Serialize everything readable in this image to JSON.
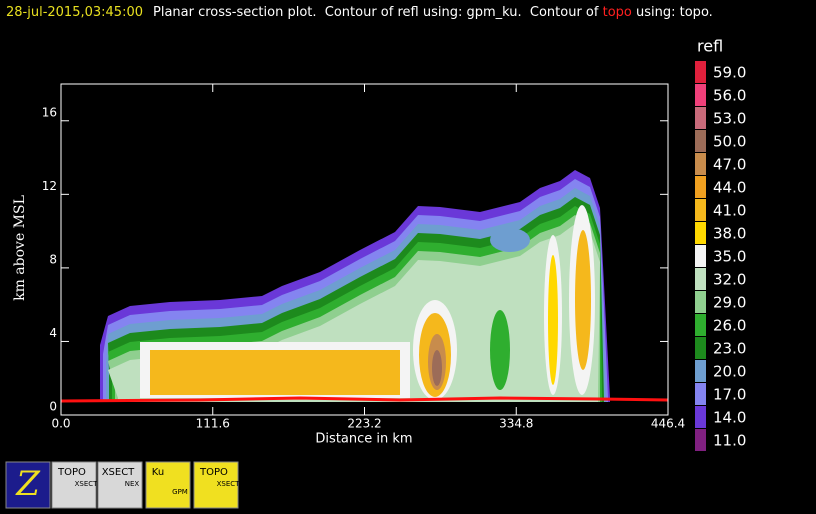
{
  "header": {
    "time": "28-jul-2015,03:45:00",
    "text1": "Planar cross-section plot.  Contour of refl using: gpm_ku.  Contour of ",
    "highlight": "topo",
    "text2": " using: topo."
  },
  "chart_data": {
    "type": "contour",
    "xlabel": "Distance in km",
    "ylabel": "km above MSL",
    "xlim": [
      0,
      446.4
    ],
    "ylim": [
      0,
      18
    ],
    "xticks": [
      {
        "value": 0,
        "label": "0.0"
      },
      111.6,
      223.2,
      334.8,
      446.4
    ],
    "yticks": [
      0,
      4,
      8,
      12,
      16
    ],
    "colorbar": {
      "title": "refl",
      "levels": [
        {
          "value": 59,
          "label": "59.0"
        },
        {
          "value": 56,
          "label": "56.0"
        },
        {
          "value": 53,
          "label": "53.0"
        },
        {
          "value": 50,
          "label": "50.0"
        },
        {
          "value": 47,
          "label": "47.0"
        },
        {
          "value": 44,
          "label": "44.0"
        },
        {
          "value": 41,
          "label": "41.0"
        },
        {
          "value": 38,
          "label": "38.0"
        },
        {
          "value": 35,
          "label": "35.0"
        },
        {
          "value": 32,
          "label": "32.0"
        },
        {
          "value": 29,
          "label": "29.0"
        },
        {
          "value": 26,
          "label": "26.0"
        },
        {
          "value": 23,
          "label": "23.0"
        },
        {
          "value": 20,
          "label": "20.0"
        },
        {
          "value": 17,
          "label": "17.0"
        },
        {
          "value": 14,
          "label": "14.0"
        },
        {
          "value": 11,
          "label": "11.0"
        }
      ],
      "colors": [
        "#e0203c",
        "#f0407a",
        "#c86a7a",
        "#9c6c58",
        "#c88c4c",
        "#f0a020",
        "#f5b81c",
        "#ffd800",
        "#f4f4f4",
        "#bfe0bf",
        "#8fcf8f",
        "#2fae2f",
        "#1d8a1d",
        "#6e9ed0",
        "#8484f0",
        "#6a38d8",
        "#802080"
      ]
    }
  },
  "toolbar": {
    "icons": [
      {
        "label": "Z"
      },
      {
        "label": "TOPO",
        "sub": "XSECT"
      },
      {
        "label": "XSECT",
        "sub": "NEX"
      },
      {
        "label": "Ku",
        "sub": "GPM"
      },
      {
        "label": "TOPO",
        "sub": "XSECT"
      }
    ]
  }
}
